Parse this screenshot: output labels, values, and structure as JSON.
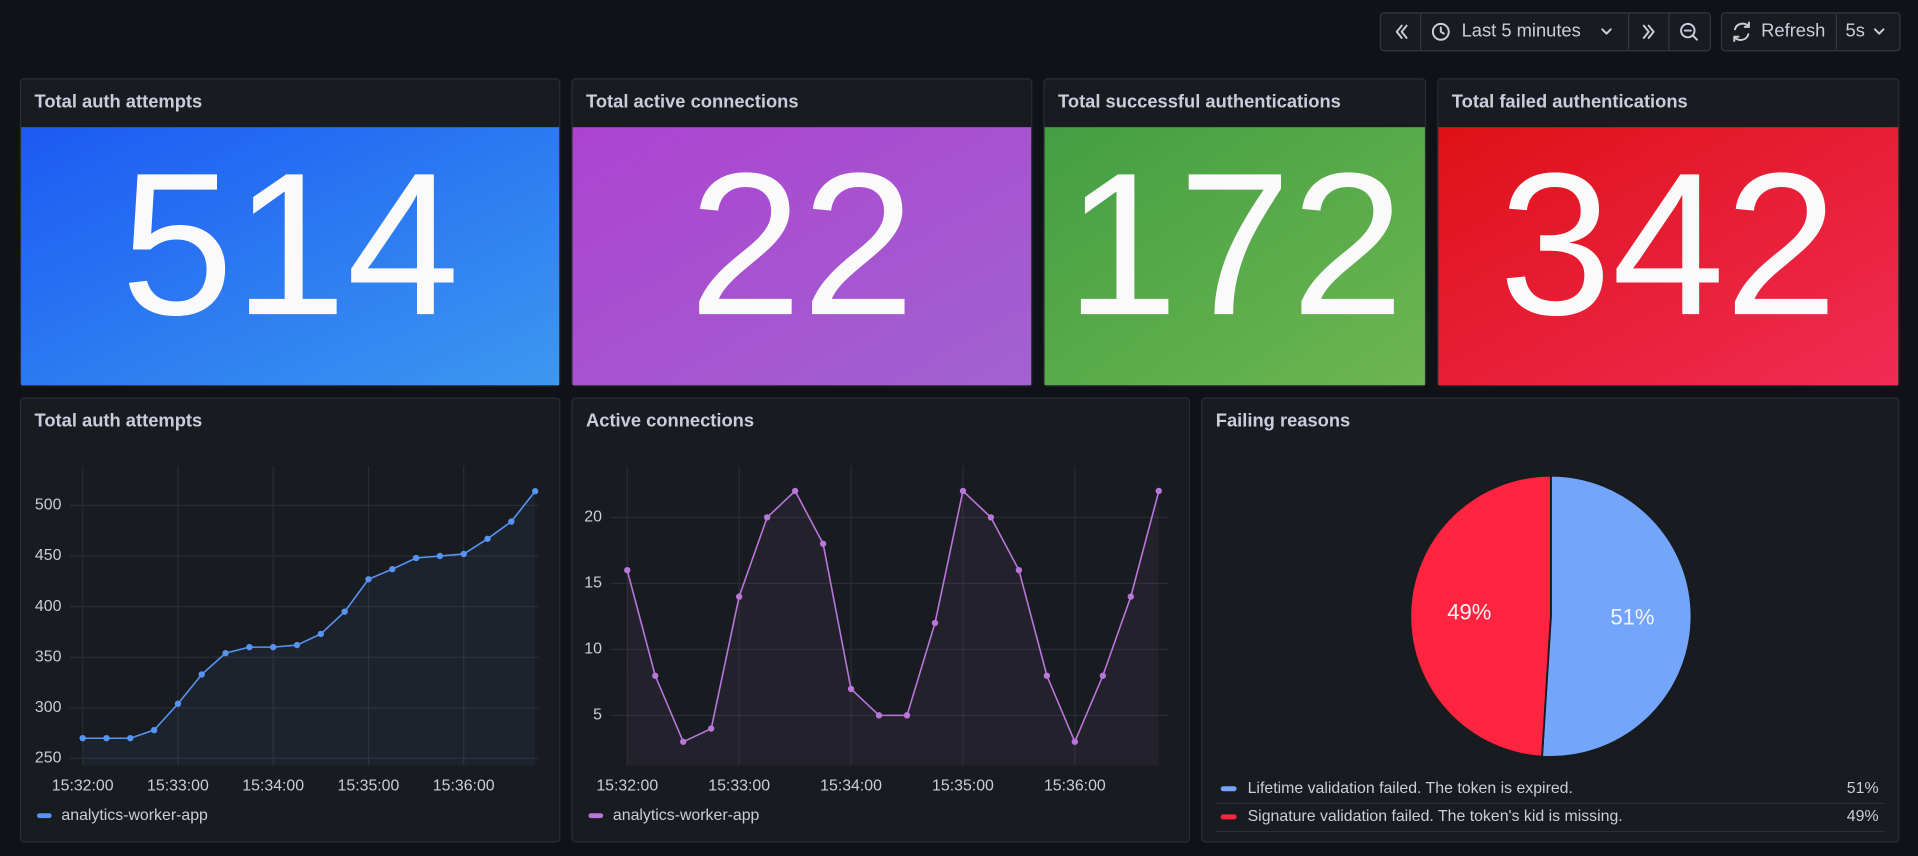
{
  "toolbar": {
    "time_range": "Last 5 minutes",
    "refresh": "Refresh",
    "interval": "5s"
  },
  "stats": [
    {
      "title": "Total auth attempts",
      "value": 514,
      "colors": [
        "#1c5af3",
        "#3d98f0"
      ]
    },
    {
      "title": "Total active connections",
      "value": 22,
      "colors": [
        "#ac43d0",
        "#a262d0"
      ]
    },
    {
      "title": "Total successful authentications",
      "value": 172,
      "colors": [
        "#449e43",
        "#6db651"
      ]
    },
    {
      "title": "Total failed authentications",
      "value": 342,
      "colors": [
        "#df1016",
        "#f02c55"
      ]
    }
  ],
  "chart_data": [
    {
      "type": "line",
      "title": "Total auth attempts",
      "x": [
        "15:32:00",
        "15:32:15",
        "15:32:30",
        "15:32:45",
        "15:33:00",
        "15:33:15",
        "15:33:30",
        "15:33:45",
        "15:34:00",
        "15:34:15",
        "15:34:30",
        "15:34:45",
        "15:35:00",
        "15:35:15",
        "15:35:30",
        "15:35:45",
        "15:36:00",
        "15:36:15",
        "15:36:30",
        "15:36:45"
      ],
      "series": [
        {
          "name": "analytics-worker-app",
          "color": "#5794f2",
          "values": [
            270,
            270,
            270,
            278,
            304,
            333,
            354,
            360,
            360,
            362,
            373,
            395,
            427,
            437,
            448,
            450,
            452,
            467,
            484,
            514
          ]
        }
      ],
      "xlim": [
        "15:31:52",
        "15:36:47"
      ],
      "xticks": [
        "15:32:00",
        "15:33:00",
        "15:34:00",
        "15:35:00",
        "15:36:00"
      ],
      "ylim": [
        243,
        539
      ],
      "yticks": [
        250,
        300,
        350,
        400,
        450,
        500
      ],
      "grid": true
    },
    {
      "type": "line",
      "title": "Active connections",
      "x": [
        "15:32:00",
        "15:32:15",
        "15:32:30",
        "15:32:45",
        "15:33:00",
        "15:33:15",
        "15:33:30",
        "15:33:45",
        "15:34:00",
        "15:34:15",
        "15:34:30",
        "15:34:45",
        "15:35:00",
        "15:35:15",
        "15:35:30",
        "15:35:45",
        "15:36:00",
        "15:36:15",
        "15:36:30",
        "15:36:45"
      ],
      "series": [
        {
          "name": "analytics-worker-app",
          "color": "#b877d9",
          "values": [
            16,
            8,
            3,
            4,
            14,
            20,
            22,
            18,
            7,
            5,
            5,
            12,
            22,
            20,
            16,
            8,
            3,
            8,
            14,
            22
          ]
        }
      ],
      "xlim": [
        "15:31:51",
        "15:36:50"
      ],
      "xticks": [
        "15:32:00",
        "15:33:00",
        "15:34:00",
        "15:35:00",
        "15:36:00"
      ],
      "ylim": [
        1.2,
        23.9
      ],
      "yticks": [
        5,
        10,
        15,
        20
      ],
      "grid": true
    },
    {
      "type": "pie",
      "title": "Failing reasons",
      "categories": [
        "Lifetime validation failed. The token is expired.",
        "Signature validation failed. The token's kid is missing."
      ],
      "values": [
        51,
        49
      ],
      "value_labels": [
        "51%",
        "49%"
      ],
      "colors": [
        "#73a6fb",
        "#ff2440"
      ]
    }
  ]
}
